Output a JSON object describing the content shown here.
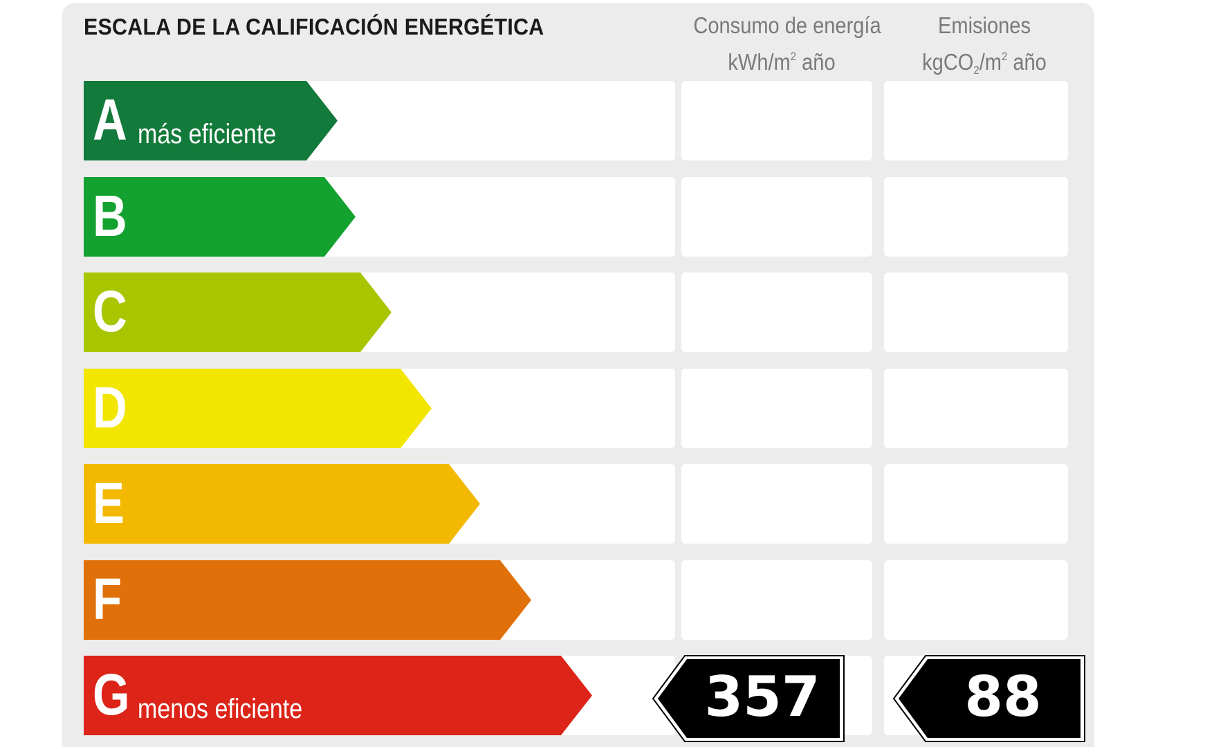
{
  "header": {
    "title": "ESCALA DE LA CALIFICACIÓN ENERGÉTICA",
    "consumo": {
      "line1": "Consumo de energía",
      "line2_pre": "kWh/m",
      "line2_sup": "2",
      "line2_post": " año"
    },
    "emisiones": {
      "line1": "Emisiones",
      "line2_pre": "kgCO",
      "line2_sub": "2",
      "line2_mid": "/m",
      "line2_sup": "2",
      "line2_post": " año"
    }
  },
  "scale": [
    {
      "letter": "A",
      "label": "más eficiente",
      "color": "#127a3a"
    },
    {
      "letter": "B",
      "label": "",
      "color": "#13a12f"
    },
    {
      "letter": "C",
      "label": "",
      "color": "#a8c500"
    },
    {
      "letter": "D",
      "label": "",
      "color": "#f2e500"
    },
    {
      "letter": "E",
      "label": "",
      "color": "#f2b900"
    },
    {
      "letter": "F",
      "label": "",
      "color": "#e0700a"
    },
    {
      "letter": "G",
      "label": "menos eficiente",
      "color": "#dc2418"
    }
  ],
  "rating": {
    "class": "G",
    "consumo_value": "357",
    "emisiones_value": "88",
    "badge_color": "#000000"
  }
}
